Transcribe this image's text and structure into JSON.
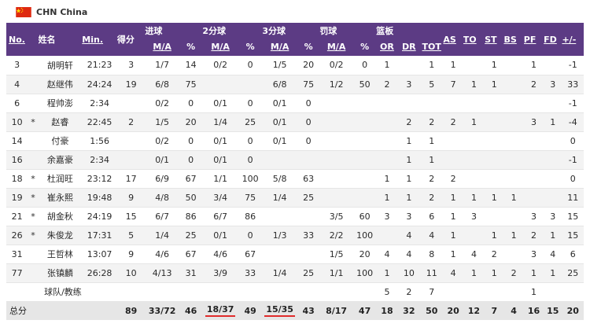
{
  "team": {
    "code": "CHN",
    "name": "China",
    "flag_icon": "china-flag-icon",
    "flag_color": "#de2910"
  },
  "header": {
    "no": "No.",
    "name": "姓名",
    "min": "Min.",
    "pts": "得分",
    "fg": "进球",
    "two": "2分球",
    "three": "3分球",
    "ft": "罚球",
    "reb": "篮板",
    "ma": "M/A",
    "pct": "%",
    "or": "OR",
    "dr": "DR",
    "tot": "TOT",
    "as": "AS",
    "to": "TO",
    "st": "ST",
    "bs": "BS",
    "pf": "PF",
    "fd": "FD",
    "pm": "+/-"
  },
  "players": [
    {
      "no": "3",
      "star": "",
      "name": "胡明轩",
      "min": "21:23",
      "pts": "3",
      "fg_ma": "1/7",
      "fg_pct": "14",
      "two_ma": "0/2",
      "two_pct": "0",
      "three_ma": "1/5",
      "three_pct": "20",
      "ft_ma": "0/2",
      "ft_pct": "0",
      "or": "1",
      "dr": "",
      "tot": "1",
      "as": "1",
      "to": "",
      "st": "1",
      "bs": "",
      "pf": "1",
      "fd": "",
      "pm": "-1"
    },
    {
      "no": "4",
      "star": "",
      "name": "赵继伟",
      "min": "24:24",
      "pts": "19",
      "fg_ma": "6/8",
      "fg_pct": "75",
      "two_ma": "",
      "two_pct": "",
      "three_ma": "6/8",
      "three_pct": "75",
      "ft_ma": "1/2",
      "ft_pct": "50",
      "or": "2",
      "dr": "3",
      "tot": "5",
      "as": "7",
      "to": "1",
      "st": "1",
      "bs": "",
      "pf": "2",
      "fd": "3",
      "pm": "33"
    },
    {
      "no": "6",
      "star": "",
      "name": "程帅澎",
      "min": "2:34",
      "pts": "",
      "fg_ma": "0/2",
      "fg_pct": "0",
      "two_ma": "0/1",
      "two_pct": "0",
      "three_ma": "0/1",
      "three_pct": "0",
      "ft_ma": "",
      "ft_pct": "",
      "or": "",
      "dr": "",
      "tot": "",
      "as": "",
      "to": "",
      "st": "",
      "bs": "",
      "pf": "",
      "fd": "",
      "pm": "-1"
    },
    {
      "no": "10",
      "star": "*",
      "name": "赵睿",
      "min": "22:45",
      "pts": "2",
      "fg_ma": "1/5",
      "fg_pct": "20",
      "two_ma": "1/4",
      "two_pct": "25",
      "three_ma": "0/1",
      "three_pct": "0",
      "ft_ma": "",
      "ft_pct": "",
      "or": "",
      "dr": "2",
      "tot": "2",
      "as": "2",
      "to": "1",
      "st": "",
      "bs": "",
      "pf": "3",
      "fd": "1",
      "pm": "-4"
    },
    {
      "no": "14",
      "star": "",
      "name": "付豪",
      "min": "1:56",
      "pts": "",
      "fg_ma": "0/2",
      "fg_pct": "0",
      "two_ma": "0/1",
      "two_pct": "0",
      "three_ma": "0/1",
      "three_pct": "0",
      "ft_ma": "",
      "ft_pct": "",
      "or": "",
      "dr": "1",
      "tot": "1",
      "as": "",
      "to": "",
      "st": "",
      "bs": "",
      "pf": "",
      "fd": "",
      "pm": "0"
    },
    {
      "no": "16",
      "star": "",
      "name": "余嘉豪",
      "min": "2:34",
      "pts": "",
      "fg_ma": "0/1",
      "fg_pct": "0",
      "two_ma": "0/1",
      "two_pct": "0",
      "three_ma": "",
      "three_pct": "",
      "ft_ma": "",
      "ft_pct": "",
      "or": "",
      "dr": "1",
      "tot": "1",
      "as": "",
      "to": "",
      "st": "",
      "bs": "",
      "pf": "",
      "fd": "",
      "pm": "-1"
    },
    {
      "no": "18",
      "star": "*",
      "name": "杜润旺",
      "min": "23:12",
      "pts": "17",
      "fg_ma": "6/9",
      "fg_pct": "67",
      "two_ma": "1/1",
      "two_pct": "100",
      "three_ma": "5/8",
      "three_pct": "63",
      "ft_ma": "",
      "ft_pct": "",
      "or": "1",
      "dr": "1",
      "tot": "2",
      "as": "2",
      "to": "",
      "st": "",
      "bs": "",
      "pf": "",
      "fd": "",
      "pm": "0"
    },
    {
      "no": "19",
      "star": "*",
      "name": "崔永熙",
      "min": "19:48",
      "pts": "9",
      "fg_ma": "4/8",
      "fg_pct": "50",
      "two_ma": "3/4",
      "two_pct": "75",
      "three_ma": "1/4",
      "three_pct": "25",
      "ft_ma": "",
      "ft_pct": "",
      "or": "1",
      "dr": "1",
      "tot": "2",
      "as": "1",
      "to": "1",
      "st": "1",
      "bs": "1",
      "pf": "",
      "fd": "",
      "pm": "11"
    },
    {
      "no": "21",
      "star": "*",
      "name": "胡金秋",
      "min": "24:19",
      "pts": "15",
      "fg_ma": "6/7",
      "fg_pct": "86",
      "two_ma": "6/7",
      "two_pct": "86",
      "three_ma": "",
      "three_pct": "",
      "ft_ma": "3/5",
      "ft_pct": "60",
      "or": "3",
      "dr": "3",
      "tot": "6",
      "as": "1",
      "to": "3",
      "st": "",
      "bs": "",
      "pf": "3",
      "fd": "3",
      "pm": "15"
    },
    {
      "no": "26",
      "star": "*",
      "name": "朱俊龙",
      "min": "17:31",
      "pts": "5",
      "fg_ma": "1/4",
      "fg_pct": "25",
      "two_ma": "0/1",
      "two_pct": "0",
      "three_ma": "1/3",
      "three_pct": "33",
      "ft_ma": "2/2",
      "ft_pct": "100",
      "or": "",
      "dr": "4",
      "tot": "4",
      "as": "1",
      "to": "",
      "st": "1",
      "bs": "1",
      "pf": "2",
      "fd": "1",
      "pm": "15"
    },
    {
      "no": "31",
      "star": "",
      "name": "王哲林",
      "min": "13:07",
      "pts": "9",
      "fg_ma": "4/6",
      "fg_pct": "67",
      "two_ma": "4/6",
      "two_pct": "67",
      "three_ma": "",
      "three_pct": "",
      "ft_ma": "1/5",
      "ft_pct": "20",
      "or": "4",
      "dr": "4",
      "tot": "8",
      "as": "1",
      "to": "4",
      "st": "2",
      "bs": "",
      "pf": "3",
      "fd": "4",
      "pm": "6"
    },
    {
      "no": "77",
      "star": "",
      "name": "张镇麟",
      "min": "26:28",
      "pts": "10",
      "fg_ma": "4/13",
      "fg_pct": "31",
      "two_ma": "3/9",
      "two_pct": "33",
      "three_ma": "1/4",
      "three_pct": "25",
      "ft_ma": "1/1",
      "ft_pct": "100",
      "or": "1",
      "dr": "10",
      "tot": "11",
      "as": "4",
      "to": "1",
      "st": "1",
      "bs": "2",
      "pf": "1",
      "fd": "1",
      "pm": "25"
    }
  ],
  "coach_row": {
    "label": "球队/教练",
    "or": "5",
    "dr": "2",
    "tot": "7",
    "pf": "1"
  },
  "totals": {
    "label": "总分",
    "pts": "89",
    "fg_ma": "33/72",
    "fg_pct": "46",
    "two_ma": "18/37",
    "two_pct": "49",
    "three_ma": "15/35",
    "three_pct": "43",
    "ft_ma": "8/17",
    "ft_pct": "47",
    "or": "18",
    "dr": "32",
    "tot": "50",
    "as": "20",
    "to": "12",
    "st": "7",
    "bs": "4",
    "pf": "16",
    "fd": "15",
    "pm": "20"
  },
  "colors": {
    "header_bg": "#5c3b84",
    "header_text": "#ffffff",
    "highlight_underline": "#e02b2b",
    "total_row_bg": "#e6e6e6"
  }
}
